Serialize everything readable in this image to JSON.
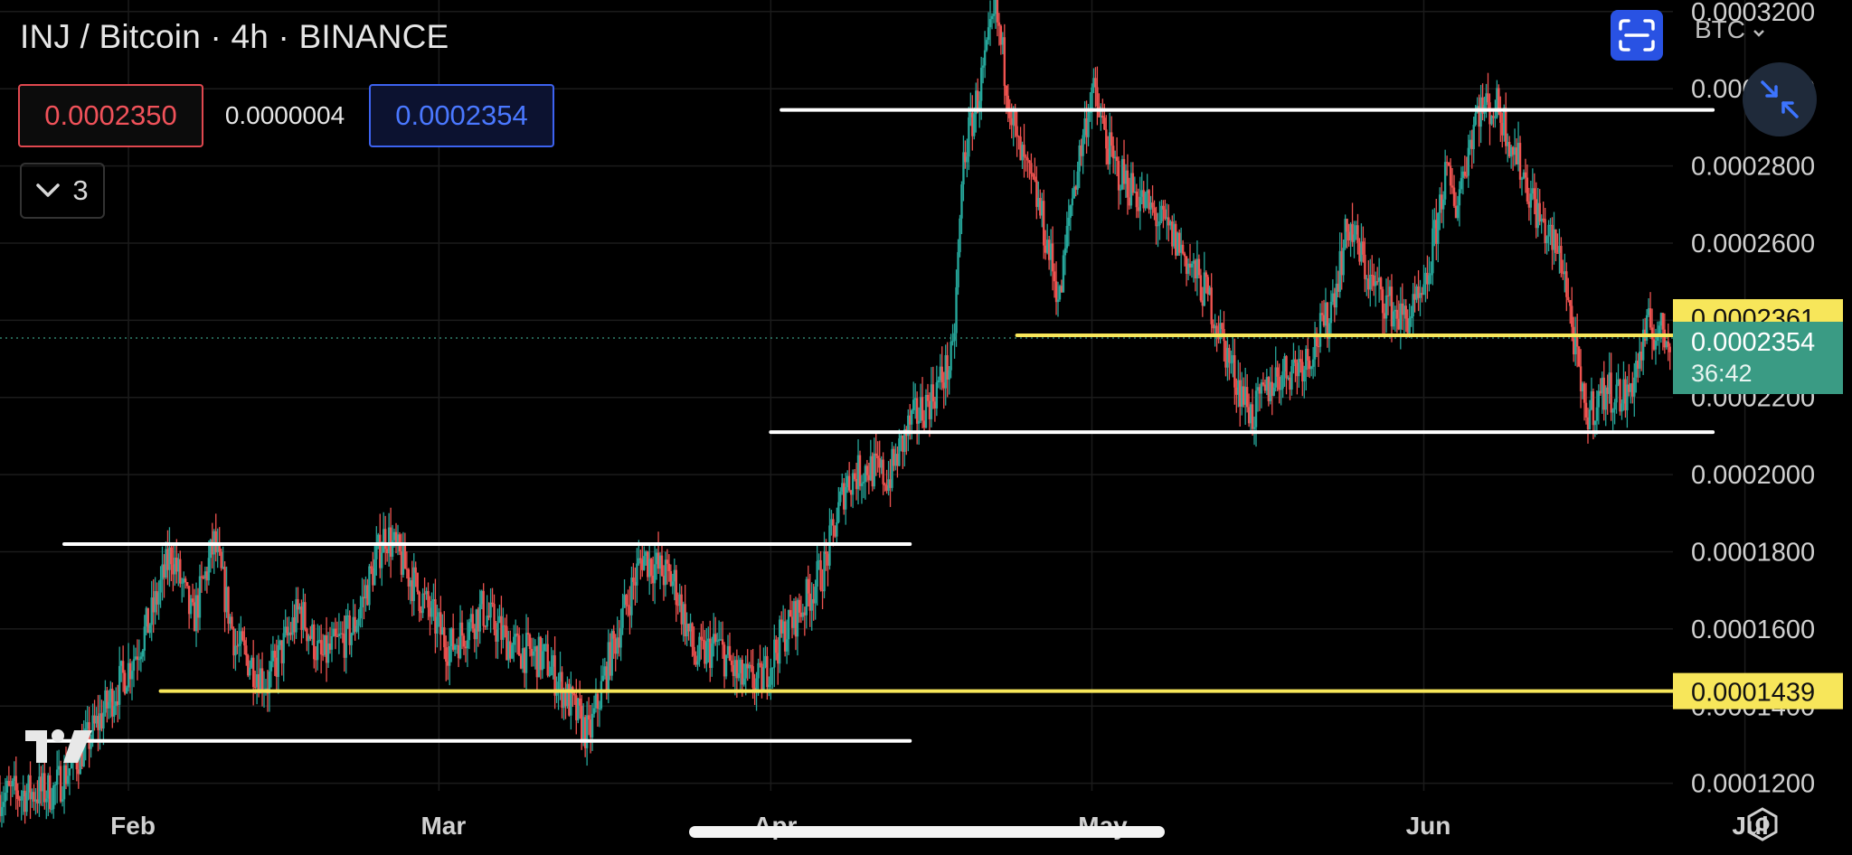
{
  "header": {
    "title": "INJ / Bitcoin · 4h · BINANCE",
    "sell_price": "0.0002350",
    "spread": "0.0000004",
    "buy_price": "0.0002354",
    "indicator_count": "3",
    "currency": "BTC",
    "currency_icon": "chevron-down-icon",
    "fullscreen_icon": "fullscreen-icon",
    "collapse_icon": "collapse-icon"
  },
  "price_axis": {
    "ticks": [
      "0.0003200",
      "0.0003000",
      "0.0002800",
      "0.0002600",
      "0.0002400",
      "0.0002200",
      "0.0002000",
      "0.0001800",
      "0.0001600",
      "0.0001400",
      "0.0001200"
    ],
    "last_price_label": "0.0002354",
    "countdown": "36:42",
    "alert_upper": "0.0002361",
    "alert_lower": "0.0001439"
  },
  "time_axis": {
    "labels": [
      "Feb",
      "Mar",
      "Apr",
      "May",
      "Jun",
      "Jul"
    ]
  },
  "colors": {
    "up": "#26a69a",
    "down": "#ef5350",
    "support_line": "#ffffff",
    "alert_line": "#f7e65a",
    "last_price_bg": "#3a9b84"
  },
  "chart_data": {
    "type": "candlestick",
    "interval": "4h",
    "ylim": [
      0.000115,
      0.000323
    ],
    "x_range": [
      "2024-01-20",
      "2024-07-11"
    ],
    "close_path": [
      [
        "2024-01-20",
        0.000117
      ],
      [
        "2024-01-25",
        0.000118
      ],
      [
        "2024-01-28",
        0.00013
      ],
      [
        "2024-02-01",
        0.00015
      ],
      [
        "2024-02-03",
        0.000162
      ],
      [
        "2024-02-05",
        0.00018
      ],
      [
        "2024-02-07",
        0.000162
      ],
      [
        "2024-02-09",
        0.000182
      ],
      [
        "2024-02-11",
        0.000156
      ],
      [
        "2024-02-14",
        0.000146
      ],
      [
        "2024-02-17",
        0.000165
      ],
      [
        "2024-02-19",
        0.000152
      ],
      [
        "2024-02-22",
        0.00016
      ],
      [
        "2024-02-25",
        0.000185
      ],
      [
        "2024-02-28",
        0.00017
      ],
      [
        "2024-03-02",
        0.000155
      ],
      [
        "2024-03-05",
        0.000165
      ],
      [
        "2024-03-08",
        0.000155
      ],
      [
        "2024-03-11",
        0.000152
      ],
      [
        "2024-03-13",
        0.000142
      ],
      [
        "2024-03-15",
        0.000132
      ],
      [
        "2024-03-17",
        0.000153
      ],
      [
        "2024-03-20",
        0.000179
      ],
      [
        "2024-03-23",
        0.000172
      ],
      [
        "2024-03-25",
        0.000152
      ],
      [
        "2024-03-27",
        0.000156
      ],
      [
        "2024-03-29",
        0.000147
      ],
      [
        "2024-03-31",
        0.000146
      ],
      [
        "2024-04-02",
        0.000158
      ],
      [
        "2024-04-04",
        0.000166
      ],
      [
        "2024-04-06",
        0.000176
      ],
      [
        "2024-04-08",
        0.000198
      ],
      [
        "2024-04-10",
        0.000202
      ],
      [
        "2024-04-12",
        0.000199
      ],
      [
        "2024-04-14",
        0.000213
      ],
      [
        "2024-04-16",
        0.00022
      ],
      [
        "2024-04-18",
        0.00023
      ],
      [
        "2024-04-19",
        0.000282
      ],
      [
        "2024-04-21",
        0.000306
      ],
      [
        "2024-04-22",
        0.00032
      ],
      [
        "2024-04-24",
        0.000285
      ],
      [
        "2024-04-26",
        0.00027
      ],
      [
        "2024-04-28",
        0.000245
      ],
      [
        "2024-04-29",
        0.00027
      ],
      [
        "2024-05-01",
        0.0003
      ],
      [
        "2024-05-03",
        0.00028
      ],
      [
        "2024-05-06",
        0.00027
      ],
      [
        "2024-05-09",
        0.00026
      ],
      [
        "2024-05-12",
        0.000245
      ],
      [
        "2024-05-14",
        0.000228
      ],
      [
        "2024-05-16",
        0.000215
      ],
      [
        "2024-05-18",
        0.000225
      ],
      [
        "2024-05-21",
        0.00023
      ],
      [
        "2024-05-23",
        0.00024
      ],
      [
        "2024-05-25",
        0.000265
      ],
      [
        "2024-05-27",
        0.00025
      ],
      [
        "2024-05-30",
        0.00024
      ],
      [
        "2024-06-01",
        0.000245
      ],
      [
        "2024-06-03",
        0.000278
      ],
      [
        "2024-06-04",
        0.00027
      ],
      [
        "2024-06-06",
        0.000295
      ],
      [
        "2024-06-08",
        0.000295
      ],
      [
        "2024-06-10",
        0.00028
      ],
      [
        "2024-06-12",
        0.000265
      ],
      [
        "2024-06-14",
        0.000255
      ],
      [
        "2024-06-16",
        0.000215
      ],
      [
        "2024-06-18",
        0.000222
      ],
      [
        "2024-06-20",
        0.00022
      ],
      [
        "2024-06-22",
        0.000238
      ],
      [
        "2024-06-24",
        0.0002354
      ]
    ],
    "horizontal_lines": [
      {
        "kind": "support",
        "from": "2024-04-02",
        "to": "2024-06-28",
        "price": 0.0002945
      },
      {
        "kind": "support",
        "from": "2024-04-01",
        "to": "2024-06-28",
        "price": 0.000211
      },
      {
        "kind": "support",
        "from": "2024-01-26",
        "to": "2024-04-14",
        "price": 0.000182
      },
      {
        "kind": "support",
        "from": "2024-01-24",
        "to": "2024-04-14",
        "price": 0.000131
      },
      {
        "kind": "alert",
        "from": "2024-04-24",
        "to": "2024-07-11",
        "price": 0.0002361
      },
      {
        "kind": "alert",
        "from": "2024-02-04",
        "to": "2024-07-11",
        "price": 0.0001439
      }
    ],
    "last_price": 0.0002354,
    "grid": true
  }
}
